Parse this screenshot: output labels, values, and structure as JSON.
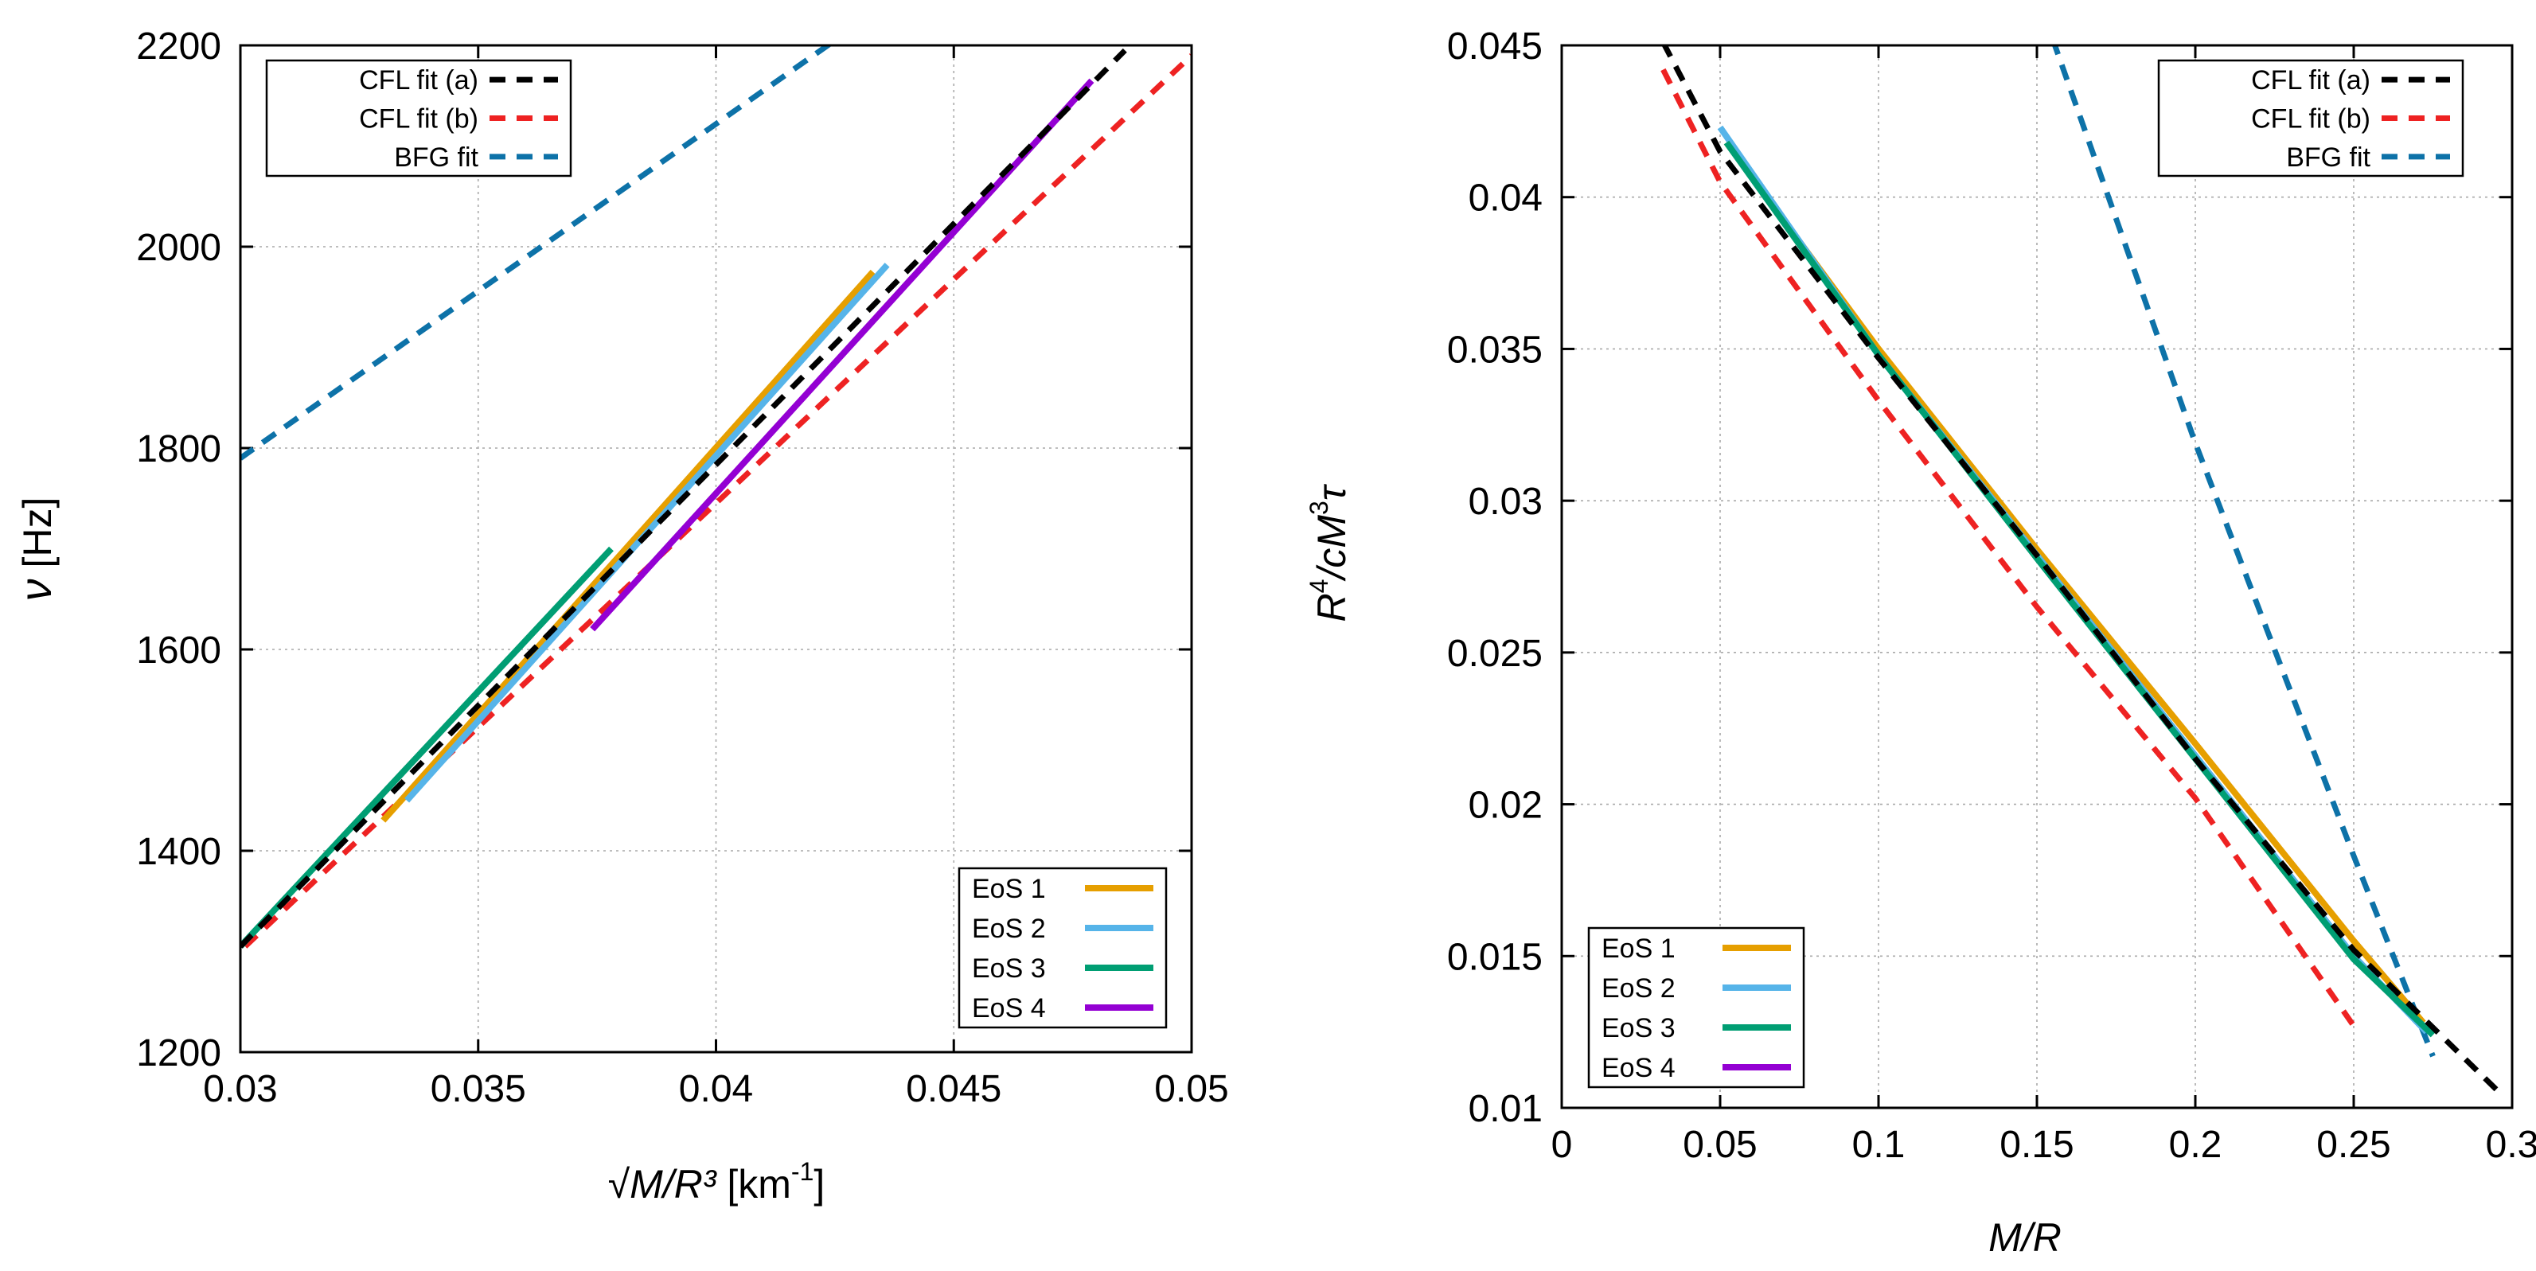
{
  "chart_data": [
    {
      "type": "line",
      "xlabel_prefix": "√",
      "xlabel_italic": "M/R³",
      "xlabel_unit": " [km",
      "xlabel_sup": "-1",
      "xlabel_close": "]",
      "ylabel_symbol": "ν",
      "ylabel_unit": " [Hz]",
      "xlim": [
        0.03,
        0.05
      ],
      "ylim": [
        1200,
        2200
      ],
      "xticks": [
        0.03,
        0.035,
        0.04,
        0.045,
        0.05
      ],
      "xtick_labels": [
        "0.03",
        "0.035",
        "0.04",
        "0.045",
        "0.05"
      ],
      "yticks": [
        1200,
        1400,
        1600,
        1800,
        2000,
        2200
      ],
      "ytick_labels": [
        "1200",
        "1400",
        "1600",
        "1800",
        "2000",
        "2200"
      ],
      "grid": true,
      "fit_legend_position": "top-left",
      "eos_legend_position": "bottom-right",
      "series": [
        {
          "name": "CFL fit (a)",
          "style": "dashed",
          "color": "#000000",
          "legend": "fit",
          "x": [
            0.03,
            0.0486
          ],
          "y": [
            1305,
            2195
          ]
        },
        {
          "name": "CFL fit (b)",
          "style": "dashed",
          "color": "#ee2222",
          "legend": "fit",
          "x": [
            0.0301,
            0.05
          ],
          "y": [
            1305,
            2190
          ]
        },
        {
          "name": "BFG fit",
          "style": "dashed",
          "color": "#0d72a8",
          "legend": "fit",
          "x": [
            0.03,
            0.0425
          ],
          "y": [
            1790,
            2205
          ]
        },
        {
          "name": "EoS 1",
          "style": "solid",
          "color": "#e69f00",
          "legend": "eos",
          "x": [
            0.033,
            0.0433
          ],
          "y": [
            1430,
            1975
          ]
        },
        {
          "name": "EoS 2",
          "style": "solid",
          "color": "#56b4e9",
          "legend": "eos",
          "x": [
            0.0335,
            0.0436
          ],
          "y": [
            1450,
            1982
          ]
        },
        {
          "name": "EoS 3",
          "style": "solid",
          "color": "#009e73",
          "legend": "eos",
          "x": [
            0.03,
            0.0378
          ],
          "y": [
            1305,
            1700
          ]
        },
        {
          "name": "EoS 4",
          "style": "solid",
          "color": "#9400d3",
          "legend": "eos",
          "x": [
            0.0374,
            0.0479
          ],
          "y": [
            1620,
            2165
          ]
        }
      ]
    },
    {
      "type": "line",
      "xlabel": "M/R",
      "ylabel_R": "R",
      "ylabel_sup1": "4",
      "ylabel_mid": "/cM",
      "ylabel_sup2": "3",
      "ylabel_tau": "τ",
      "xlim": [
        0,
        0.3
      ],
      "ylim": [
        0.01,
        0.045
      ],
      "xticks": [
        0,
        0.05,
        0.1,
        0.15,
        0.2,
        0.25,
        0.3
      ],
      "xtick_labels": [
        "0",
        "0.05",
        "0.1",
        "0.15",
        "0.2",
        "0.25",
        "0.3"
      ],
      "yticks": [
        0.01,
        0.015,
        0.02,
        0.025,
        0.03,
        0.035,
        0.04,
        0.045
      ],
      "ytick_labels": [
        "0.01",
        "0.015",
        "0.02",
        "0.025",
        "0.03",
        "0.035",
        "0.04",
        "0.045"
      ],
      "grid": true,
      "fit_legend_position": "top-right",
      "eos_legend_position": "bottom-left",
      "series": [
        {
          "name": "CFL fit (a)",
          "style": "dashed",
          "color": "#000000",
          "legend": "fit",
          "x": [
            0.032,
            0.05,
            0.1,
            0.15,
            0.2,
            0.25,
            0.297
          ],
          "y": [
            0.0451,
            0.0415,
            0.0347,
            0.0282,
            0.0215,
            0.0152,
            0.0104
          ]
        },
        {
          "name": "CFL fit (b)",
          "style": "dashed",
          "color": "#ee2222",
          "legend": "fit",
          "x": [
            0.032,
            0.05,
            0.1,
            0.15,
            0.2,
            0.25
          ],
          "y": [
            0.0442,
            0.0405,
            0.0333,
            0.0265,
            0.0202,
            0.0127
          ]
        },
        {
          "name": "BFG fit",
          "style": "dashed",
          "color": "#0d72a8",
          "legend": "fit",
          "x": [
            0.155,
            0.2,
            0.25,
            0.275
          ],
          "y": [
            0.0452,
            0.0319,
            0.0183,
            0.0117
          ]
        },
        {
          "name": "EoS 1",
          "style": "solid",
          "color": "#e69f00",
          "legend": "eos",
          "x": [
            0.052,
            0.1,
            0.15,
            0.2,
            0.25,
            0.272
          ],
          "y": [
            0.0418,
            0.035,
            0.0284,
            0.022,
            0.0155,
            0.0128
          ]
        },
        {
          "name": "EoS 2",
          "style": "solid",
          "color": "#56b4e9",
          "legend": "eos",
          "x": [
            0.05,
            0.1,
            0.15,
            0.2,
            0.25,
            0.273
          ],
          "y": [
            0.0423,
            0.0348,
            0.0282,
            0.0216,
            0.015,
            0.0125
          ]
        },
        {
          "name": "EoS 3",
          "style": "solid",
          "color": "#009e73",
          "legend": "eos",
          "x": [
            0.052,
            0.1,
            0.15,
            0.2,
            0.25,
            0.275
          ],
          "y": [
            0.0418,
            0.0348,
            0.0281,
            0.0215,
            0.0149,
            0.0124
          ]
        },
        {
          "name": "EoS 4",
          "style": "solid",
          "color": "#9400d3",
          "legend": "eos",
          "x": [],
          "y": []
        }
      ]
    }
  ]
}
